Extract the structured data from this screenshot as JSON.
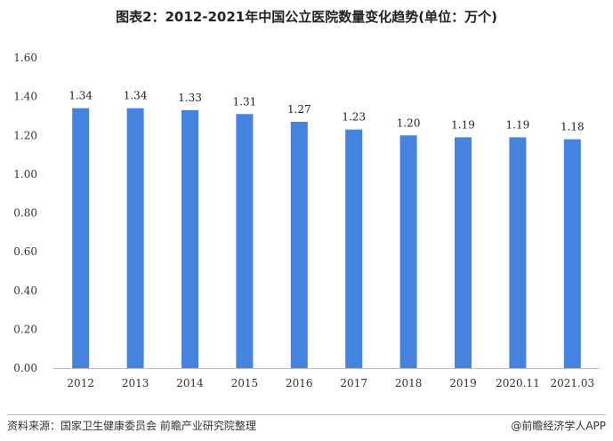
{
  "header": {
    "title": "图表2：2012-2021年中国公立医院数量变化趋势(单位：万个)"
  },
  "footer": {
    "source": "资料来源：国家卫生健康委员会 前瞻产业研究院整理",
    "brand": "@前瞻经济学人APP"
  },
  "colors": {
    "bar": "#4583E0"
  },
  "chart_data": {
    "type": "bar",
    "title": "图表2：2012-2021年中国公立医院数量变化趋势(单位：万个)",
    "categories": [
      "2012",
      "2013",
      "2014",
      "2015",
      "2016",
      "2017",
      "2018",
      "2019",
      "2020.11",
      "2021.03"
    ],
    "values": [
      1.34,
      1.34,
      1.33,
      1.31,
      1.27,
      1.23,
      1.2,
      1.19,
      1.19,
      1.18
    ],
    "data_labels": [
      "1.34",
      "1.34",
      "1.33",
      "1.31",
      "1.27",
      "1.23",
      "1.20",
      "1.19",
      "1.19",
      "1.18"
    ],
    "yticks": [
      "0.00",
      "0.20",
      "0.40",
      "0.60",
      "0.80",
      "1.00",
      "1.20",
      "1.40",
      "1.60"
    ],
    "ylim": [
      0,
      1.6
    ],
    "xlabel": "",
    "ylabel": "",
    "grid": false,
    "legend": "none"
  }
}
